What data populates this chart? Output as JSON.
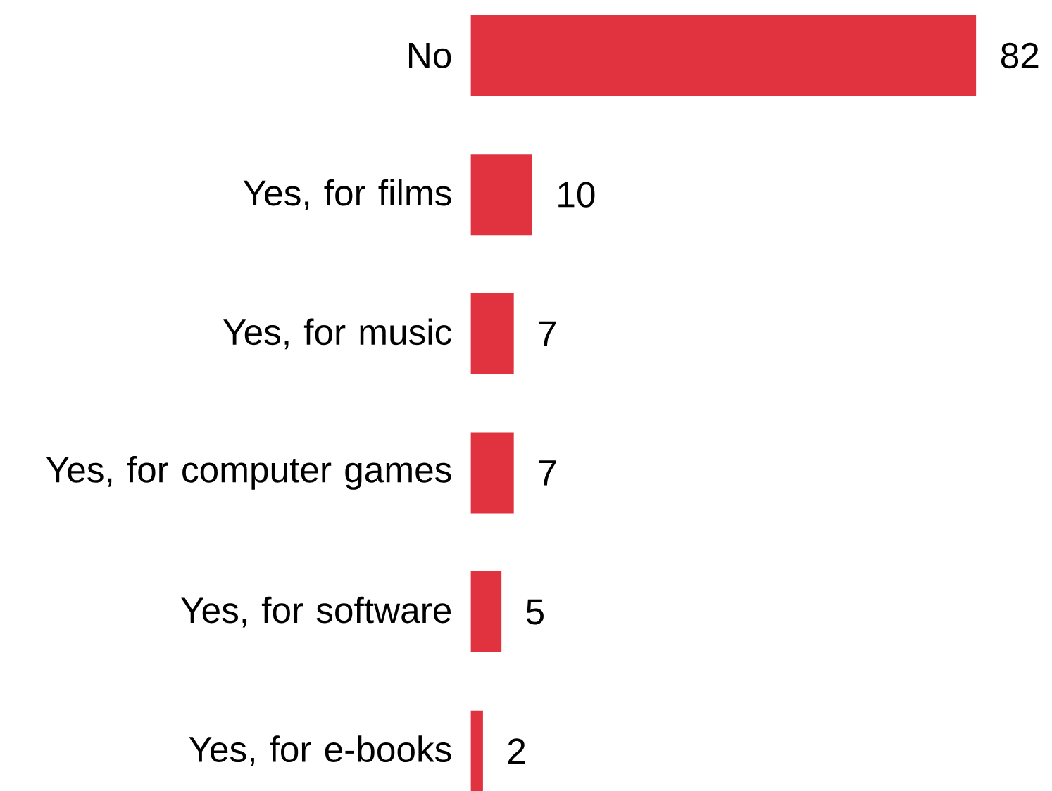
{
  "chart_data": {
    "type": "bar",
    "orientation": "horizontal",
    "categories": [
      "No",
      "Yes, for films",
      "Yes, for music",
      "Yes, for computer games",
      "Yes, for software",
      "Yes, for e-books"
    ],
    "values": [
      82,
      10,
      7,
      7,
      5,
      2
    ],
    "color": "#e0333f",
    "data_labels": true
  }
}
